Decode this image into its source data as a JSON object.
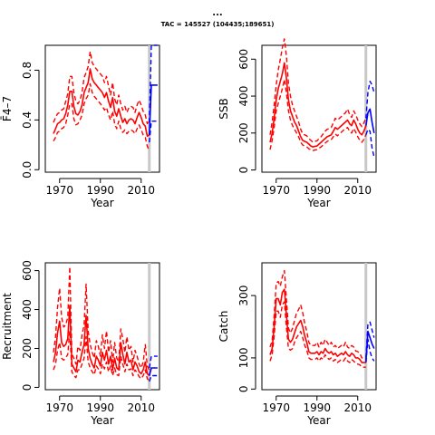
{
  "header": {
    "title": "...",
    "subtitle": "TAC = 145527 (104435;189651)"
  },
  "colors": {
    "history": "#ff0000",
    "forecast": "#0000ff",
    "marker": "#c8c8c8"
  },
  "chart_data": [
    {
      "type": "line",
      "id": "fbar",
      "xlabel": "Year",
      "ylabel": "F̄4–7",
      "xlim": [
        1963,
        2019
      ],
      "ylim": [
        -0.02,
        1.0
      ],
      "xticks": [
        1970,
        1990,
        2010
      ],
      "yticks": [
        0,
        0.4,
        0.8
      ],
      "marker_year": 2014,
      "history": {
        "x": [
          1967,
          1968,
          1969,
          1970,
          1971,
          1972,
          1973,
          1974,
          1975,
          1976,
          1977,
          1978,
          1979,
          1980,
          1981,
          1982,
          1983,
          1984,
          1985,
          1986,
          1987,
          1988,
          1989,
          1990,
          1991,
          1992,
          1993,
          1994,
          1995,
          1996,
          1997,
          1998,
          1999,
          2000,
          2001,
          2002,
          2003,
          2004,
          2005,
          2006,
          2007,
          2008,
          2009,
          2010,
          2011,
          2012,
          2013,
          2014
        ],
        "mid": [
          0.29,
          0.33,
          0.37,
          0.38,
          0.4,
          0.41,
          0.45,
          0.52,
          0.63,
          0.63,
          0.51,
          0.45,
          0.44,
          0.47,
          0.52,
          0.62,
          0.66,
          0.7,
          0.81,
          0.73,
          0.7,
          0.68,
          0.66,
          0.64,
          0.62,
          0.58,
          0.62,
          0.55,
          0.5,
          0.58,
          0.47,
          0.43,
          0.49,
          0.43,
          0.38,
          0.41,
          0.37,
          0.4,
          0.41,
          0.4,
          0.37,
          0.42,
          0.46,
          0.42,
          0.37,
          0.35,
          0.27,
          0.28
        ],
        "lo": [
          0.23,
          0.26,
          0.3,
          0.31,
          0.33,
          0.34,
          0.37,
          0.44,
          0.53,
          0.53,
          0.41,
          0.36,
          0.37,
          0.4,
          0.44,
          0.53,
          0.57,
          0.6,
          0.69,
          0.62,
          0.59,
          0.57,
          0.55,
          0.53,
          0.51,
          0.48,
          0.5,
          0.44,
          0.4,
          0.47,
          0.37,
          0.33,
          0.39,
          0.33,
          0.3,
          0.32,
          0.29,
          0.31,
          0.32,
          0.31,
          0.29,
          0.33,
          0.36,
          0.32,
          0.28,
          0.26,
          0.19,
          0.15
        ],
        "hi": [
          0.38,
          0.42,
          0.45,
          0.46,
          0.48,
          0.49,
          0.55,
          0.61,
          0.75,
          0.75,
          0.62,
          0.55,
          0.53,
          0.56,
          0.62,
          0.74,
          0.78,
          0.83,
          0.95,
          0.86,
          0.83,
          0.81,
          0.79,
          0.77,
          0.75,
          0.7,
          0.75,
          0.67,
          0.6,
          0.7,
          0.57,
          0.52,
          0.6,
          0.53,
          0.48,
          0.51,
          0.46,
          0.5,
          0.51,
          0.5,
          0.46,
          0.52,
          0.56,
          0.52,
          0.47,
          0.44,
          0.37,
          0.4
        ]
      },
      "forecast": {
        "x": [
          2014,
          2015,
          2016,
          2017,
          2018
        ],
        "mid": [
          0.28,
          0.68,
          0.68,
          0.68,
          0.68
        ],
        "lo": [
          0.22,
          0.39,
          0.39,
          0.39,
          0.39
        ],
        "hi": [
          0.38,
          1.0,
          1.0,
          1.0,
          1.0
        ]
      }
    },
    {
      "type": "line",
      "id": "ssb",
      "xlabel": "Year",
      "ylabel": "SSB",
      "xlim": [
        1963,
        2019
      ],
      "ylim": [
        -12,
        675
      ],
      "xticks": [
        1970,
        1990,
        2010
      ],
      "yticks": [
        0,
        200,
        400,
        600
      ],
      "marker_year": 2014,
      "history": {
        "x": [
          1967,
          1968,
          1969,
          1970,
          1971,
          1972,
          1973,
          1974,
          1975,
          1976,
          1977,
          1978,
          1979,
          1980,
          1981,
          1982,
          1983,
          1984,
          1985,
          1986,
          1987,
          1988,
          1989,
          1990,
          1991,
          1992,
          1993,
          1994,
          1995,
          1996,
          1997,
          1998,
          1999,
          2000,
          2001,
          2002,
          2003,
          2004,
          2005,
          2006,
          2007,
          2008,
          2009,
          2010,
          2011,
          2012,
          2013,
          2014
        ],
        "mid": [
          150,
          200,
          280,
          380,
          440,
          480,
          520,
          580,
          500,
          380,
          320,
          290,
          260,
          240,
          210,
          180,
          160,
          155,
          150,
          140,
          130,
          125,
          128,
          130,
          140,
          150,
          160,
          170,
          180,
          185,
          190,
          210,
          230,
          220,
          230,
          240,
          250,
          260,
          270,
          250,
          240,
          270,
          250,
          220,
          200,
          190,
          210,
          240
        ],
        "lo": [
          110,
          160,
          230,
          320,
          360,
          400,
          440,
          490,
          420,
          320,
          270,
          240,
          220,
          200,
          180,
          150,
          135,
          130,
          125,
          115,
          110,
          105,
          108,
          110,
          118,
          125,
          135,
          145,
          155,
          160,
          165,
          180,
          195,
          185,
          195,
          205,
          215,
          225,
          230,
          210,
          200,
          225,
          205,
          180,
          160,
          150,
          165,
          190
        ],
        "hi": [
          190,
          260,
          350,
          460,
          540,
          600,
          660,
          710,
          620,
          470,
          400,
          350,
          320,
          290,
          260,
          220,
          195,
          190,
          185,
          170,
          160,
          150,
          155,
          158,
          170,
          180,
          195,
          210,
          220,
          225,
          230,
          255,
          280,
          270,
          280,
          290,
          300,
          310,
          330,
          300,
          285,
          320,
          300,
          270,
          250,
          235,
          255,
          280
        ]
      },
      "forecast": {
        "x": [
          2014,
          2015,
          2016,
          2017,
          2018
        ],
        "mid": [
          240,
          310,
          330,
          260,
          200
        ],
        "lo": [
          190,
          220,
          210,
          120,
          70
        ],
        "hi": [
          280,
          420,
          480,
          460,
          420
        ]
      }
    },
    {
      "type": "line",
      "id": "recruitment",
      "xlabel": "Year",
      "ylabel": "Recruitment",
      "xlim": [
        1963,
        2019
      ],
      "ylim": [
        -12,
        640
      ],
      "xticks": [
        1970,
        1990,
        2010
      ],
      "yticks": [
        0,
        200,
        400,
        600
      ],
      "marker_year": 2014,
      "history": {
        "x": [
          1967,
          1968,
          1969,
          1970,
          1971,
          1972,
          1973,
          1974,
          1975,
          1976,
          1977,
          1978,
          1979,
          1980,
          1981,
          1982,
          1983,
          1984,
          1985,
          1986,
          1987,
          1988,
          1989,
          1990,
          1991,
          1992,
          1993,
          1994,
          1995,
          1996,
          1997,
          1998,
          1999,
          2000,
          2001,
          2002,
          2003,
          2004,
          2005,
          2006,
          2007,
          2008,
          2009,
          2010,
          2011,
          2012,
          2013,
          2014
        ],
        "mid": [
          130,
          180,
          280,
          340,
          230,
          210,
          220,
          250,
          420,
          120,
          100,
          80,
          140,
          130,
          180,
          220,
          370,
          200,
          150,
          120,
          100,
          160,
          140,
          110,
          180,
          140,
          190,
          120,
          160,
          90,
          150,
          100,
          90,
          230,
          170,
          120,
          180,
          130,
          140,
          90,
          130,
          110,
          80,
          70,
          90,
          130,
          70,
          60
        ],
        "lo": [
          90,
          120,
          190,
          230,
          150,
          140,
          150,
          170,
          290,
          80,
          60,
          50,
          90,
          90,
          120,
          150,
          260,
          130,
          100,
          80,
          65,
          110,
          95,
          70,
          120,
          95,
          130,
          80,
          110,
          60,
          100,
          65,
          60,
          160,
          120,
          80,
          120,
          90,
          95,
          60,
          90,
          75,
          55,
          45,
          60,
          90,
          45,
          35
        ],
        "hi": [
          180,
          260,
          410,
          510,
          360,
          310,
          320,
          360,
          620,
          170,
          150,
          120,
          210,
          190,
          270,
          320,
          530,
          290,
          220,
          180,
          150,
          240,
          210,
          160,
          270,
          200,
          290,
          180,
          240,
          130,
          230,
          150,
          130,
          300,
          250,
          180,
          260,
          190,
          210,
          130,
          190,
          160,
          120,
          100,
          130,
          220,
          110,
          90
        ]
      },
      "forecast": {
        "x": [
          2014,
          2015,
          2016,
          2017,
          2018
        ],
        "mid": [
          60,
          100,
          100,
          100,
          100
        ],
        "lo": [
          30,
          60,
          60,
          60,
          60
        ],
        "hi": [
          100,
          160,
          160,
          160,
          160
        ]
      }
    },
    {
      "type": "line",
      "id": "catch",
      "xlabel": "Year",
      "ylabel": "Catch",
      "xlim": [
        1963,
        2019
      ],
      "ylim": [
        -2,
        405
      ],
      "xticks": [
        1970,
        1990,
        2010
      ],
      "yticks": [
        0,
        100,
        300
      ],
      "marker_year": 2014,
      "history": {
        "x": [
          1967,
          1968,
          1969,
          1970,
          1971,
          1972,
          1973,
          1974,
          1975,
          1976,
          1977,
          1978,
          1979,
          1980,
          1981,
          1982,
          1983,
          1984,
          1985,
          1986,
          1987,
          1988,
          1989,
          1990,
          1991,
          1992,
          1993,
          1994,
          1995,
          1996,
          1997,
          1998,
          1999,
          2000,
          2001,
          2002,
          2003,
          2004,
          2005,
          2006,
          2007,
          2008,
          2009,
          2010,
          2011,
          2012,
          2013,
          2014
        ],
        "mid": [
          110,
          130,
          200,
          290,
          290,
          270,
          310,
          320,
          240,
          160,
          150,
          160,
          180,
          200,
          210,
          220,
          200,
          170,
          150,
          120,
          115,
          115,
          115,
          120,
          110,
          120,
          115,
          130,
          120,
          115,
          120,
          110,
          115,
          105,
          110,
          115,
          110,
          120,
          110,
          105,
          115,
          110,
          100,
          100,
          95,
          85,
          85,
          85
        ],
        "lo": [
          90,
          110,
          170,
          250,
          250,
          230,
          270,
          280,
          200,
          130,
          125,
          130,
          150,
          165,
          175,
          185,
          165,
          140,
          125,
          100,
          95,
          95,
          95,
          100,
          90,
          100,
          95,
          110,
          100,
          95,
          100,
          90,
          95,
          85,
          90,
          95,
          90,
          100,
          90,
          85,
          95,
          90,
          82,
          80,
          78,
          70,
          70,
          70
        ],
        "hi": [
          135,
          155,
          235,
          340,
          345,
          330,
          360,
          380,
          290,
          195,
          180,
          195,
          220,
          245,
          255,
          270,
          245,
          210,
          185,
          150,
          140,
          140,
          140,
          150,
          135,
          150,
          140,
          160,
          150,
          140,
          150,
          135,
          140,
          130,
          135,
          140,
          135,
          150,
          135,
          130,
          140,
          135,
          122,
          120,
          115,
          100,
          100,
          100
        ]
      },
      "forecast": {
        "x": [
          2014,
          2015,
          2016,
          2017,
          2018
        ],
        "mid": [
          90,
          185,
          165,
          145,
          130
        ],
        "lo": [
          85,
          160,
          120,
          100,
          90
        ],
        "hi": [
          100,
          210,
          215,
          190,
          165
        ]
      }
    }
  ]
}
